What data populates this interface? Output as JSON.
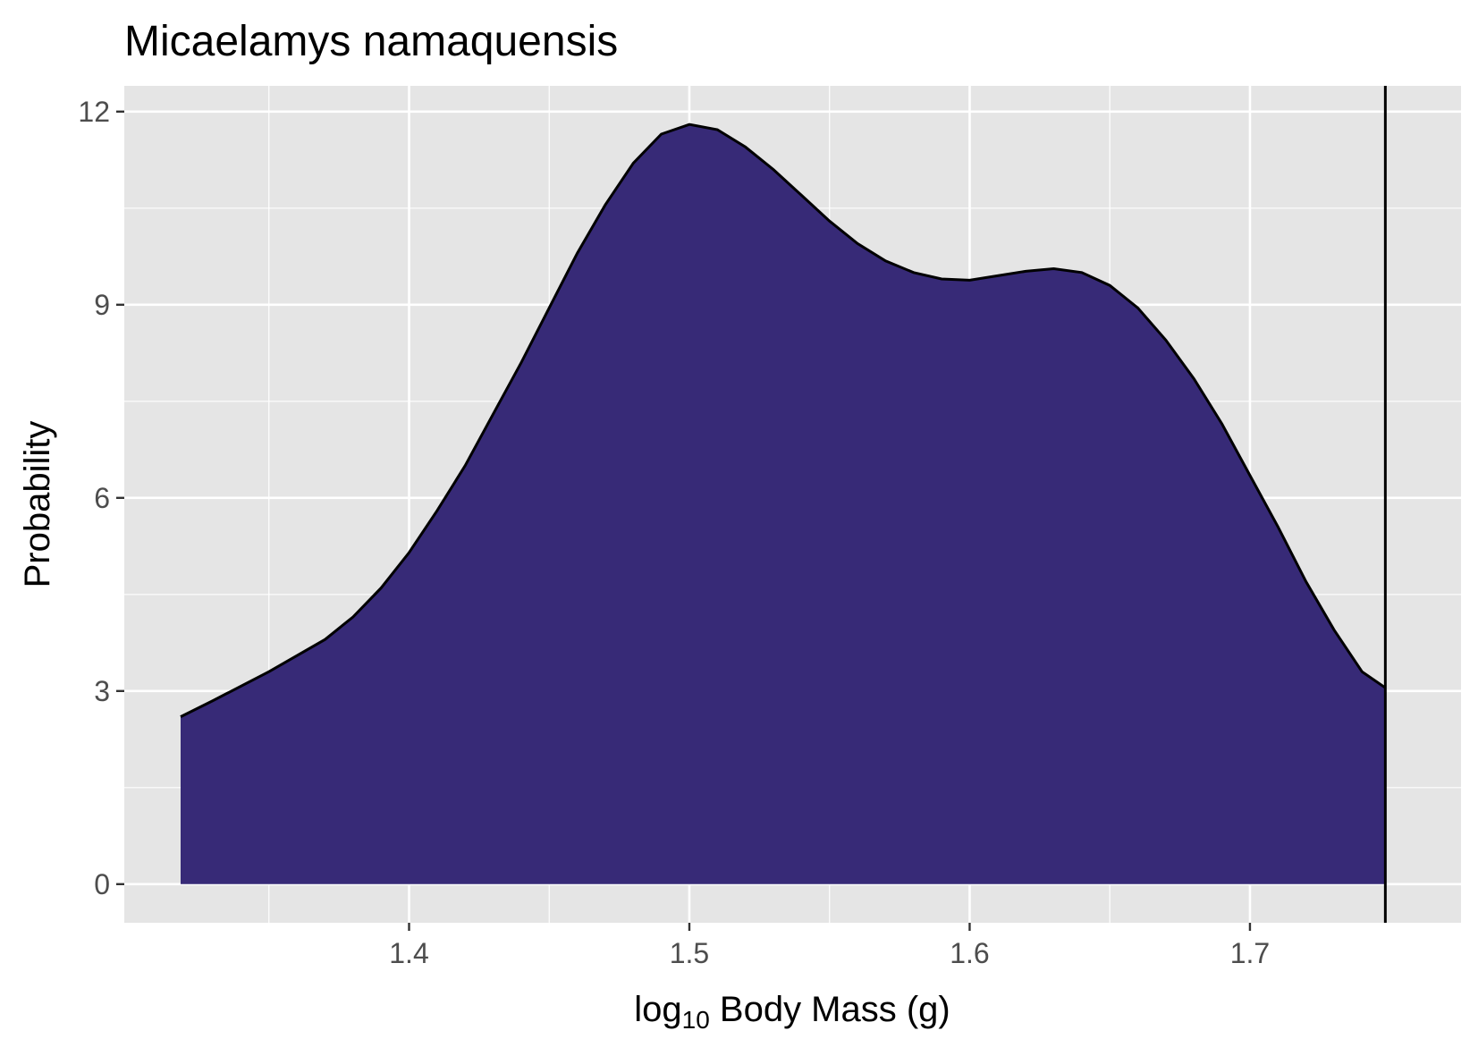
{
  "chart_data": {
    "type": "area",
    "title": "Micaelamys namaquensis",
    "xlabel": {
      "prefix": "log",
      "subscript": "10",
      "suffix": " Body Mass (g)"
    },
    "ylabel": "Probability",
    "xlim": [
      1.2984,
      1.7753
    ],
    "ylim": [
      -0.6,
      12.4
    ],
    "x_ticks": [
      1.4,
      1.5,
      1.6,
      1.7
    ],
    "x_tick_labels": [
      "1.4",
      "1.5",
      "1.6",
      "1.7"
    ],
    "x_minor_ticks": [
      1.35,
      1.45,
      1.55,
      1.65
    ],
    "y_ticks": [
      0,
      3,
      6,
      9,
      12
    ],
    "y_tick_labels": [
      "0",
      "3",
      "6",
      "9",
      "12"
    ],
    "y_minor_ticks": [
      1.5,
      4.5,
      7.5,
      10.5
    ],
    "grid": true,
    "fill_color": "#372a77",
    "line_color": "#000000",
    "panel_background": "#e5e5e5",
    "reference_line_x": 1.7483,
    "series": [
      {
        "x": [
          1.3185,
          1.33,
          1.35,
          1.37,
          1.38,
          1.39,
          1.4,
          1.41,
          1.42,
          1.43,
          1.44,
          1.45,
          1.46,
          1.47,
          1.48,
          1.49,
          1.5,
          1.51,
          1.52,
          1.53,
          1.54,
          1.55,
          1.56,
          1.57,
          1.58,
          1.59,
          1.6,
          1.61,
          1.62,
          1.63,
          1.64,
          1.65,
          1.66,
          1.67,
          1.68,
          1.69,
          1.7,
          1.71,
          1.72,
          1.73,
          1.74,
          1.7483
        ],
        "y": [
          2.6,
          2.85,
          3.3,
          3.8,
          4.15,
          4.6,
          5.15,
          5.8,
          6.5,
          7.3,
          8.1,
          8.95,
          9.8,
          10.55,
          11.2,
          11.65,
          11.8,
          11.72,
          11.45,
          11.1,
          10.7,
          10.3,
          9.95,
          9.68,
          9.5,
          9.4,
          9.38,
          9.45,
          9.52,
          9.56,
          9.5,
          9.3,
          8.95,
          8.45,
          7.85,
          7.15,
          6.35,
          5.55,
          4.7,
          3.95,
          3.3,
          3.05
        ]
      }
    ]
  }
}
